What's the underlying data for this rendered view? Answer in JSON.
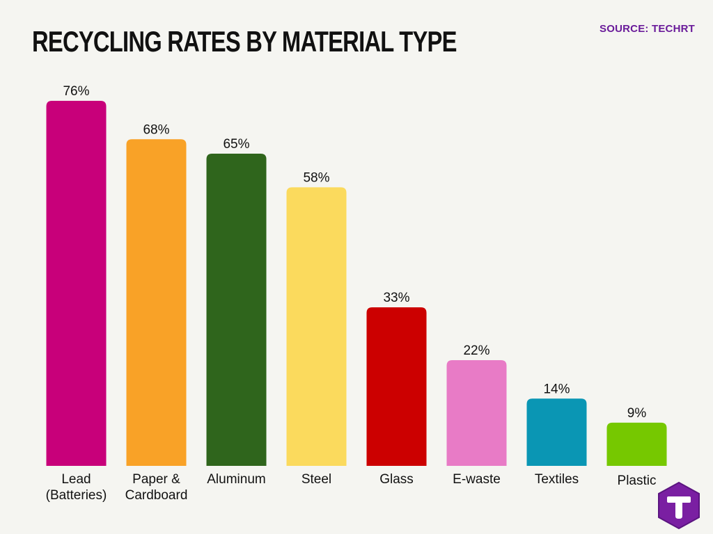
{
  "title": "RECYCLING RATES BY MATERIAL TYPE",
  "source": "SOURCE: TECHRT",
  "logo_icon": "techrt-logo-icon",
  "chart_data": {
    "type": "bar",
    "title": "RECYCLING RATES BY MATERIAL TYPE",
    "xlabel": "",
    "ylabel": "",
    "ylim": [
      0,
      100
    ],
    "grid": false,
    "categories": [
      [
        "Lead",
        "(Batteries)"
      ],
      [
        "Paper &",
        "Cardboard"
      ],
      [
        "Aluminum"
      ],
      [
        "Steel"
      ],
      [
        "Glass"
      ],
      [
        "E-waste"
      ],
      [
        "Textiles"
      ],
      [
        "Plastic"
      ]
    ],
    "values": [
      76,
      68,
      65,
      58,
      33,
      22,
      14,
      9
    ],
    "data_labels": [
      "76%",
      "68%",
      "65%",
      "58%",
      "33%",
      "22%",
      "14%",
      "9%"
    ],
    "colors": [
      "#c8007a",
      "#f9a227",
      "#2f651c",
      "#fbda5d",
      "#cc0000",
      "#e87bc6",
      "#0a96b4",
      "#76c800"
    ]
  }
}
